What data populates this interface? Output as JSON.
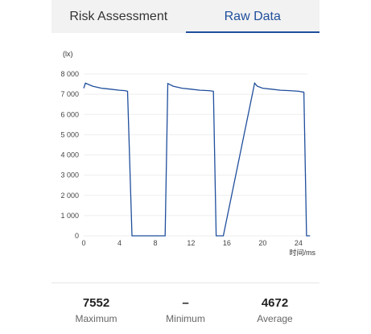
{
  "tabs": [
    {
      "label": "Risk Assessment",
      "active": false
    },
    {
      "label": "Raw Data",
      "active": true
    }
  ],
  "accent_color": "#1f4e9c",
  "chart_data": {
    "type": "line",
    "ylabel": "(lx)",
    "xlabel": "时间/ms",
    "xlim": [
      0,
      25
    ],
    "ylim": [
      0,
      8000
    ],
    "x_ticks": [
      0,
      4,
      8,
      12,
      16,
      20,
      24
    ],
    "y_ticks": [
      0,
      1000,
      2000,
      3000,
      4000,
      5000,
      6000,
      7000,
      8000
    ],
    "y_tick_labels": [
      "0",
      "1 000",
      "2 000",
      "3 000",
      "4 000",
      "5 000",
      "6 000",
      "7 000",
      "8 000"
    ],
    "grid": true,
    "line_color": "#1f4e9c",
    "series": [
      {
        "x": [
          0,
          0.2,
          1,
          2,
          3,
          4,
          4.6,
          4.9,
          5.4,
          5.7,
          9.1,
          9.4,
          10,
          11,
          12,
          13,
          14,
          14.5,
          14.8,
          15.3,
          15.6,
          19.1,
          19.4,
          20,
          21,
          22,
          23,
          24,
          24.6,
          24.9,
          25.3
        ],
        "y": [
          7300,
          7550,
          7400,
          7300,
          7250,
          7200,
          7180,
          7150,
          0,
          0,
          0,
          7530,
          7400,
          7300,
          7250,
          7200,
          7180,
          7150,
          0,
          0,
          0,
          7550,
          7400,
          7300,
          7250,
          7200,
          7180,
          7150,
          7100,
          0,
          0
        ]
      }
    ]
  },
  "stats": [
    {
      "value": "7552",
      "label": "Maximum"
    },
    {
      "value": "–",
      "label": "Minimum"
    },
    {
      "value": "4672",
      "label": "Average"
    }
  ]
}
